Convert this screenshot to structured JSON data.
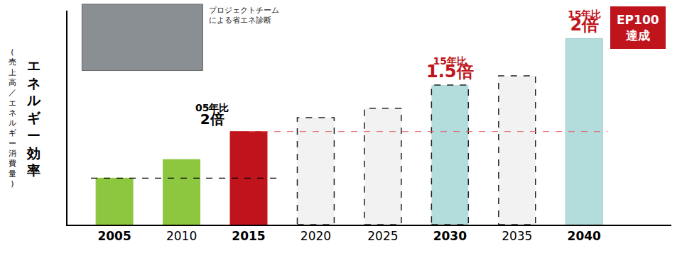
{
  "chart_data": {
    "type": "bar",
    "y_title": "エネルギー効率",
    "y_subtitle": "(売上高／エネルギー消費量)",
    "categories": [
      "2005",
      "2010",
      "2015",
      "2020",
      "2025",
      "2030",
      "2035",
      "2040"
    ],
    "values": [
      1,
      1.4,
      2,
      2.3,
      2.5,
      3,
      3.2,
      4
    ],
    "colors": [
      "#8dc63f",
      "#8dc63f",
      "#c0141c",
      "#f2f2f2",
      "#f2f2f2",
      "#b3dcdc",
      "#f2f2f2",
      "#b3dcdc"
    ],
    "ylim": [
      0,
      4.6
    ],
    "tick_labels": "x",
    "grid": false,
    "annotations": [
      {
        "category": "2015",
        "label": "05年比",
        "ratio": "2倍",
        "color": "#000000"
      },
      {
        "category": "2030",
        "label": "15年比",
        "ratio": "1.5倍",
        "color": "#c0141c"
      },
      {
        "category": "2040",
        "label": "15年比",
        "ratio": "2倍",
        "color": "#c0141c"
      }
    ],
    "callout": {
      "lines": [
        "EP100",
        "達成"
      ],
      "color": "#c0141c"
    },
    "photo_caption": [
      "プロジェクトチーム",
      "による省エネ診断"
    ]
  }
}
